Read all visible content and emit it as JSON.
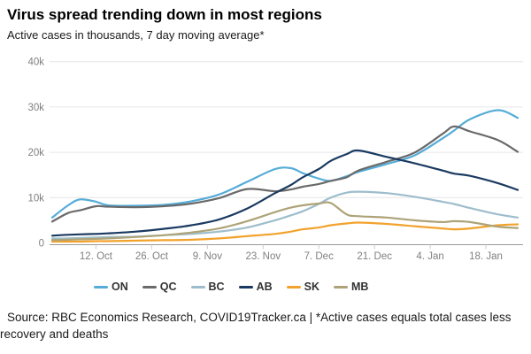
{
  "footer": {
    "source": "Source: RBC Economics Research, COVID19Tracker.ca | *Active cases equals total cases less recovery and deaths"
  },
  "colors": {
    "gridline": "#e6e6e6",
    "axis_line": "#999999",
    "tick": "#cccccc",
    "axis_label": "#808080",
    "legend_label": "#333333",
    "title": "#000000"
  },
  "chart_data": {
    "type": "line",
    "title": "Virus spread trending down in most regions",
    "subtitle": "Active cases in thousands, 7 day moving average*",
    "xlabel": "",
    "ylabel": "",
    "unit": "thousands of active cases",
    "grid": "horizontal",
    "legend_position": "bottom",
    "ylim": [
      0,
      40
    ],
    "y_ticks": [
      {
        "value": 0,
        "label": "0"
      },
      {
        "value": 10,
        "label": "10k"
      },
      {
        "value": 20,
        "label": "20k"
      },
      {
        "value": 30,
        "label": "30k"
      },
      {
        "value": 40,
        "label": "40k"
      }
    ],
    "x_range_days": [
      0,
      117
    ],
    "x_ticks": [
      {
        "day": 11,
        "label": "12. Oct"
      },
      {
        "day": 25,
        "label": "26. Oct"
      },
      {
        "day": 39,
        "label": "9. Nov"
      },
      {
        "day": 53,
        "label": "23. Nov"
      },
      {
        "day": 67,
        "label": "7. Dec"
      },
      {
        "day": 81,
        "label": "21. Dec"
      },
      {
        "day": 95,
        "label": "4. Jan"
      },
      {
        "day": 109,
        "label": "18. Jan"
      }
    ],
    "sample_days": [
      0,
      4,
      7,
      11,
      14,
      21,
      28,
      35,
      42,
      49,
      56,
      60,
      63,
      67,
      70,
      74,
      77,
      84,
      91,
      98,
      101,
      105,
      112,
      117
    ],
    "series": [
      {
        "name": "ON",
        "color": "#55ACD8",
        "values": [
          5.6,
          8.3,
          9.6,
          9.1,
          8.3,
          8.2,
          8.4,
          9.2,
          10.7,
          13.5,
          16.3,
          16.5,
          15.4,
          14.2,
          13.7,
          14.7,
          15.7,
          17.4,
          19.3,
          23.0,
          24.8,
          27.3,
          29.3,
          27.6
        ]
      },
      {
        "name": "QC",
        "color": "#6A6A6A",
        "values": [
          4.7,
          6.6,
          7.2,
          8.1,
          8.0,
          7.9,
          8.1,
          8.7,
          9.9,
          11.9,
          11.4,
          11.8,
          12.4,
          13.0,
          13.7,
          14.5,
          16.0,
          17.9,
          19.9,
          24.0,
          25.7,
          24.6,
          22.7,
          20.1
        ]
      },
      {
        "name": "BC",
        "color": "#9EBDCC",
        "values": [
          1.0,
          1.0,
          1.1,
          1.2,
          1.3,
          1.4,
          1.7,
          2.0,
          2.5,
          3.4,
          5.0,
          6.1,
          7.0,
          8.6,
          10.0,
          11.1,
          11.3,
          11.0,
          10.2,
          9.1,
          8.6,
          7.7,
          6.3,
          5.6
        ]
      },
      {
        "name": "AB",
        "color": "#1A3A61",
        "values": [
          1.6,
          1.8,
          1.9,
          2.0,
          2.1,
          2.5,
          3.1,
          3.9,
          5.2,
          7.6,
          11.0,
          12.8,
          14.5,
          16.3,
          18.1,
          19.6,
          20.4,
          19.0,
          17.6,
          16.0,
          15.3,
          14.8,
          13.2,
          11.7
        ]
      },
      {
        "name": "SK",
        "color": "#F2A22C",
        "values": [
          0.3,
          0.3,
          0.3,
          0.4,
          0.4,
          0.5,
          0.6,
          0.7,
          1.0,
          1.5,
          2.0,
          2.5,
          3.0,
          3.4,
          3.9,
          4.3,
          4.5,
          4.2,
          3.7,
          3.2,
          3.0,
          3.2,
          3.9,
          4.1
        ]
      },
      {
        "name": "MB",
        "color": "#AEA378",
        "values": [
          0.6,
          0.7,
          0.8,
          0.9,
          1.0,
          1.3,
          1.7,
          2.3,
          3.2,
          4.8,
          6.8,
          7.8,
          8.3,
          8.7,
          8.8,
          6.3,
          5.9,
          5.6,
          5.0,
          4.6,
          4.8,
          4.6,
          3.6,
          3.3
        ]
      }
    ]
  }
}
